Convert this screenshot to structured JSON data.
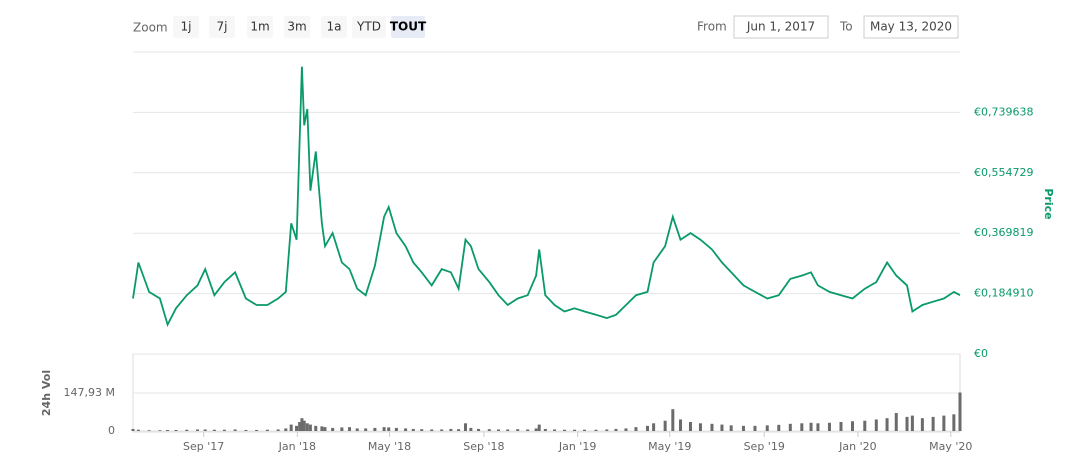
{
  "range_selector": {
    "zoom_label": "Zoom",
    "buttons": [
      "1j",
      "7j",
      "1m",
      "3m",
      "1a",
      "YTD",
      "TOUT"
    ],
    "selected": 6,
    "from_label": "From",
    "from": "Jun 1, 2017",
    "to_label": "To",
    "to": "May 13, 2020"
  },
  "chart_data": [
    {
      "type": "line",
      "color": "#0a9a68",
      "ylabel": "Price",
      "xlim": [
        "2017-06-01",
        "2020-05-13"
      ],
      "ylim": [
        0,
        0.924548
      ],
      "grid": true,
      "yticks": [
        {
          "value": 0,
          "label": "€0"
        },
        {
          "value": 0.18491,
          "label": "€0,184910"
        },
        {
          "value": 0.369819,
          "label": "€0,369819"
        },
        {
          "value": 0.554729,
          "label": "€0,554729"
        },
        {
          "value": 0.739638,
          "label": "€0,739638"
        }
      ],
      "x": [
        "2017-06-01",
        "2017-06-08",
        "2017-06-22",
        "2017-07-06",
        "2017-07-16",
        "2017-07-27",
        "2017-08-10",
        "2017-08-24",
        "2017-09-03",
        "2017-09-15",
        "2017-09-28",
        "2017-10-12",
        "2017-10-26",
        "2017-11-09",
        "2017-11-23",
        "2017-12-07",
        "2017-12-17",
        "2017-12-24",
        "2017-12-31",
        "2018-01-04",
        "2018-01-07",
        "2018-01-10",
        "2018-01-14",
        "2018-01-18",
        "2018-01-25",
        "2018-02-02",
        "2018-02-06",
        "2018-02-16",
        "2018-02-28",
        "2018-03-10",
        "2018-03-20",
        "2018-03-31",
        "2018-04-12",
        "2018-04-24",
        "2018-04-30",
        "2018-05-10",
        "2018-05-22",
        "2018-06-01",
        "2018-06-12",
        "2018-06-25",
        "2018-07-08",
        "2018-07-20",
        "2018-07-30",
        "2018-08-08",
        "2018-08-15",
        "2018-08-25",
        "2018-09-08",
        "2018-09-20",
        "2018-10-02",
        "2018-10-15",
        "2018-10-28",
        "2018-11-08",
        "2018-11-12",
        "2018-11-20",
        "2018-12-02",
        "2018-12-15",
        "2018-12-28",
        "2019-01-10",
        "2019-01-25",
        "2019-02-08",
        "2019-02-20",
        "2019-03-05",
        "2019-03-18",
        "2019-04-02",
        "2019-04-10",
        "2019-04-25",
        "2019-05-05",
        "2019-05-15",
        "2019-05-28",
        "2019-06-10",
        "2019-06-25",
        "2019-07-08",
        "2019-07-20",
        "2019-08-05",
        "2019-08-20",
        "2019-09-05",
        "2019-09-20",
        "2019-10-05",
        "2019-10-20",
        "2019-11-01",
        "2019-11-10",
        "2019-11-25",
        "2019-12-10",
        "2019-12-25",
        "2020-01-10",
        "2020-01-25",
        "2020-02-08",
        "2020-02-20",
        "2020-03-05",
        "2020-03-12",
        "2020-03-25",
        "2020-04-08",
        "2020-04-22",
        "2020-05-05",
        "2020-05-13"
      ],
      "values": [
        0.17,
        0.28,
        0.19,
        0.17,
        0.09,
        0.14,
        0.18,
        0.21,
        0.26,
        0.18,
        0.22,
        0.25,
        0.17,
        0.15,
        0.15,
        0.17,
        0.19,
        0.4,
        0.35,
        0.65,
        0.88,
        0.7,
        0.75,
        0.5,
        0.62,
        0.4,
        0.33,
        0.37,
        0.28,
        0.26,
        0.2,
        0.18,
        0.27,
        0.42,
        0.45,
        0.37,
        0.33,
        0.28,
        0.25,
        0.21,
        0.26,
        0.25,
        0.2,
        0.35,
        0.33,
        0.26,
        0.22,
        0.18,
        0.15,
        0.17,
        0.18,
        0.24,
        0.32,
        0.18,
        0.15,
        0.13,
        0.14,
        0.13,
        0.12,
        0.11,
        0.12,
        0.15,
        0.18,
        0.19,
        0.28,
        0.33,
        0.42,
        0.35,
        0.37,
        0.35,
        0.32,
        0.28,
        0.25,
        0.21,
        0.19,
        0.17,
        0.18,
        0.23,
        0.24,
        0.25,
        0.21,
        0.19,
        0.18,
        0.17,
        0.2,
        0.22,
        0.28,
        0.24,
        0.21,
        0.13,
        0.15,
        0.16,
        0.17,
        0.19,
        0.18
      ]
    },
    {
      "type": "bar",
      "color": "#6b6b6b",
      "ylabel": "24h Vol",
      "xlim": [
        "2017-06-01",
        "2020-05-13"
      ],
      "ylim": [
        0,
        300000000
      ],
      "yticks": [
        0,
        {
          "value": 147930000,
          "label": "147,93 M"
        }
      ],
      "xticks": [
        {
          "value": "2017-09-01",
          "label": "Sep '17"
        },
        {
          "value": "2018-01-01",
          "label": "Jan '18"
        },
        {
          "value": "2018-05-01",
          "label": "May '18"
        },
        {
          "value": "2018-09-01",
          "label": "Sep '18"
        },
        {
          "value": "2019-01-01",
          "label": "Jan '19"
        },
        {
          "value": "2019-05-01",
          "label": "May '19"
        },
        {
          "value": "2019-09-01",
          "label": "Sep '19"
        },
        {
          "value": "2020-01-01",
          "label": "Jan '20"
        },
        {
          "value": "2020-05-01",
          "label": "May '20"
        }
      ],
      "x": [
        "2017-06-01",
        "2017-06-08",
        "2017-06-22",
        "2017-07-06",
        "2017-07-16",
        "2017-07-27",
        "2017-08-10",
        "2017-08-24",
        "2017-09-03",
        "2017-09-15",
        "2017-09-28",
        "2017-10-12",
        "2017-10-26",
        "2017-11-09",
        "2017-11-23",
        "2017-12-07",
        "2017-12-17",
        "2017-12-24",
        "2017-12-31",
        "2018-01-04",
        "2018-01-07",
        "2018-01-10",
        "2018-01-14",
        "2018-01-18",
        "2018-01-25",
        "2018-02-02",
        "2018-02-06",
        "2018-02-16",
        "2018-02-28",
        "2018-03-10",
        "2018-03-20",
        "2018-03-31",
        "2018-04-12",
        "2018-04-24",
        "2018-04-30",
        "2018-05-10",
        "2018-05-22",
        "2018-06-01",
        "2018-06-12",
        "2018-06-25",
        "2018-07-08",
        "2018-07-20",
        "2018-07-30",
        "2018-08-08",
        "2018-08-15",
        "2018-08-25",
        "2018-09-08",
        "2018-09-20",
        "2018-10-02",
        "2018-10-15",
        "2018-10-28",
        "2018-11-08",
        "2018-11-12",
        "2018-11-20",
        "2018-12-02",
        "2018-12-15",
        "2018-12-28",
        "2019-01-10",
        "2019-01-25",
        "2019-02-08",
        "2019-02-20",
        "2019-03-05",
        "2019-03-18",
        "2019-04-02",
        "2019-04-10",
        "2019-04-25",
        "2019-05-05",
        "2019-05-15",
        "2019-05-28",
        "2019-06-10",
        "2019-06-25",
        "2019-07-08",
        "2019-07-20",
        "2019-08-05",
        "2019-08-20",
        "2019-09-05",
        "2019-09-20",
        "2019-10-05",
        "2019-10-20",
        "2019-11-01",
        "2019-11-10",
        "2019-11-25",
        "2019-12-10",
        "2019-12-25",
        "2020-01-10",
        "2020-01-25",
        "2020-02-08",
        "2020-02-20",
        "2020-03-05",
        "2020-03-12",
        "2020-03-25",
        "2020-04-08",
        "2020-04-22",
        "2020-05-05",
        "2020-05-13"
      ],
      "values": [
        8000000,
        5000000,
        3000000,
        3000000,
        4000000,
        4000000,
        5000000,
        6000000,
        6000000,
        5000000,
        5000000,
        6000000,
        4000000,
        4000000,
        5000000,
        6000000,
        10000000,
        25000000,
        20000000,
        35000000,
        50000000,
        40000000,
        30000000,
        25000000,
        20000000,
        18000000,
        15000000,
        12000000,
        14000000,
        15000000,
        10000000,
        10000000,
        12000000,
        15000000,
        14000000,
        12000000,
        10000000,
        8000000,
        7000000,
        6000000,
        6000000,
        8000000,
        7000000,
        30000000,
        12000000,
        8000000,
        7000000,
        6000000,
        6000000,
        7000000,
        6000000,
        10000000,
        25000000,
        8000000,
        6000000,
        5000000,
        5000000,
        5000000,
        5000000,
        6000000,
        8000000,
        10000000,
        15000000,
        20000000,
        30000000,
        40000000,
        85000000,
        45000000,
        35000000,
        30000000,
        28000000,
        25000000,
        22000000,
        20000000,
        20000000,
        22000000,
        24000000,
        28000000,
        30000000,
        32000000,
        30000000,
        32000000,
        35000000,
        38000000,
        40000000,
        45000000,
        50000000,
        70000000,
        55000000,
        60000000,
        50000000,
        55000000,
        60000000,
        65000000,
        150000000
      ]
    }
  ]
}
